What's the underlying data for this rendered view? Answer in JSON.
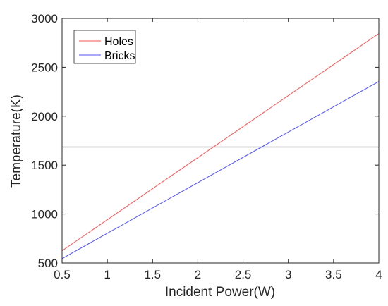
{
  "chart_data": {
    "type": "line",
    "title": "",
    "xlabel": "Incident Power(W)",
    "ylabel": "Temperature(K)",
    "xlim": [
      0.5,
      4
    ],
    "ylim": [
      500,
      3000
    ],
    "xticks": [
      "0.5",
      "1",
      "1.5",
      "2",
      "2.5",
      "3",
      "3.5",
      "4"
    ],
    "yticks": [
      "500",
      "1000",
      "1500",
      "2000",
      "2500",
      "3000"
    ],
    "grid": false,
    "legend_position": "top-left",
    "series": [
      {
        "name": "Holes",
        "color": "#ff5050",
        "x": [
          0.5,
          4
        ],
        "y": [
          625,
          2845
        ]
      },
      {
        "name": "Bricks",
        "color": "#5050ff",
        "x": [
          0.5,
          4
        ],
        "y": [
          545,
          2355
        ]
      }
    ],
    "reference_line": {
      "color": "#555555",
      "x": [
        0.5,
        4
      ],
      "y": [
        1685,
        1685
      ]
    }
  }
}
